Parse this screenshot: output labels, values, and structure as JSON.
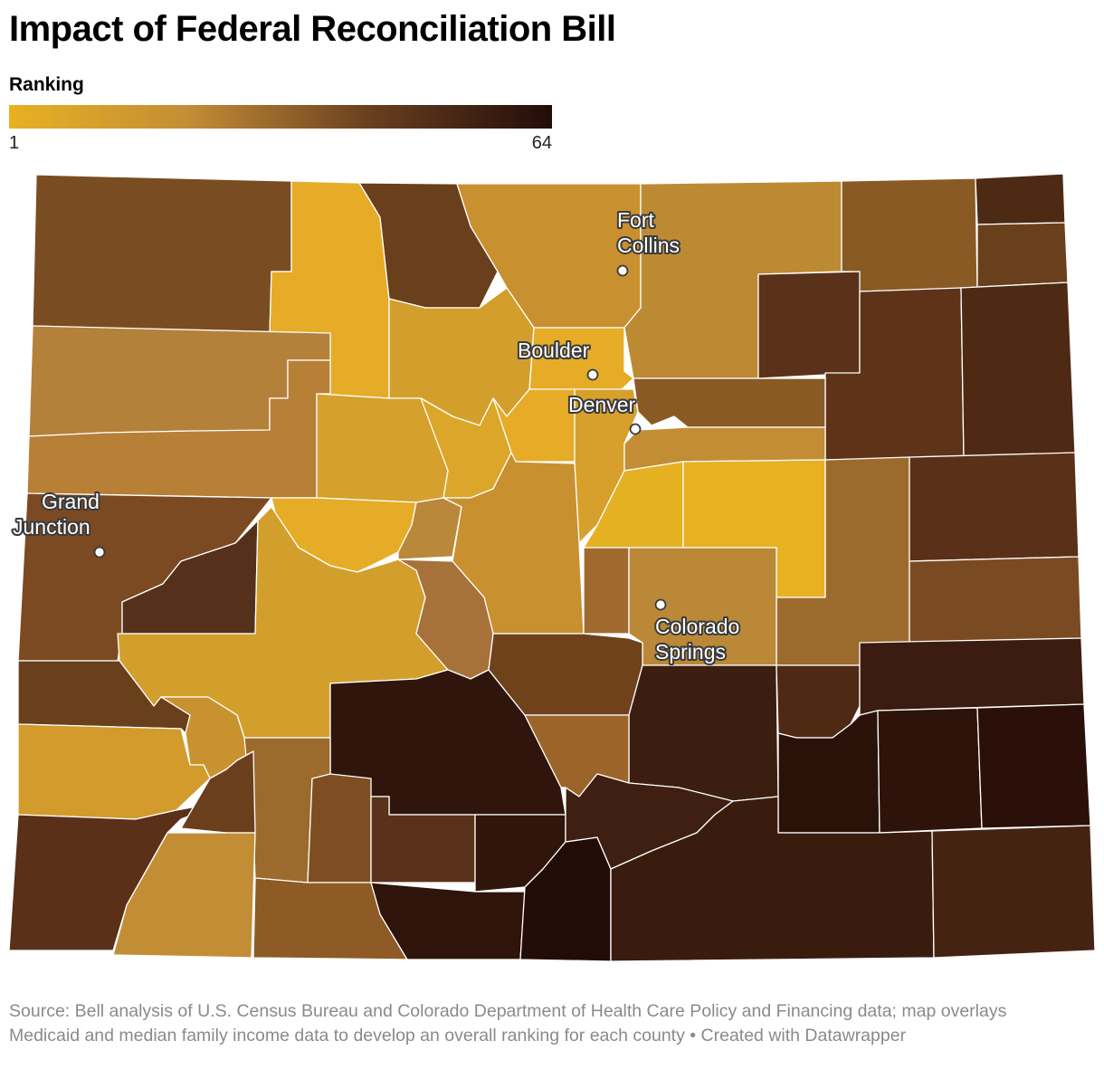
{
  "title": "Impact of Federal Reconciliation Bill",
  "legend": {
    "title": "Ranking",
    "min_label": "1",
    "max_label": "64",
    "color_stops": [
      "#e8b122",
      "#c38d36",
      "#6a4020",
      "#220c08"
    ]
  },
  "cities": [
    {
      "name_lines": [
        "Fort",
        "Collins"
      ]
    },
    {
      "name_lines": [
        "Boulder"
      ]
    },
    {
      "name_lines": [
        "Denver"
      ]
    },
    {
      "name_lines": [
        "Grand",
        "Junction"
      ]
    },
    {
      "name_lines": [
        "Colorado",
        "Springs"
      ]
    }
  ],
  "footer": {
    "source": "Source: Bell analysis of U.S. Census Bureau and Colorado Department of Health Care Policy and Financing data; map overlays Medicaid and median family income data to develop an overall ranking for each county",
    "separator": "•",
    "credit": "Created with Datawrapper"
  }
}
